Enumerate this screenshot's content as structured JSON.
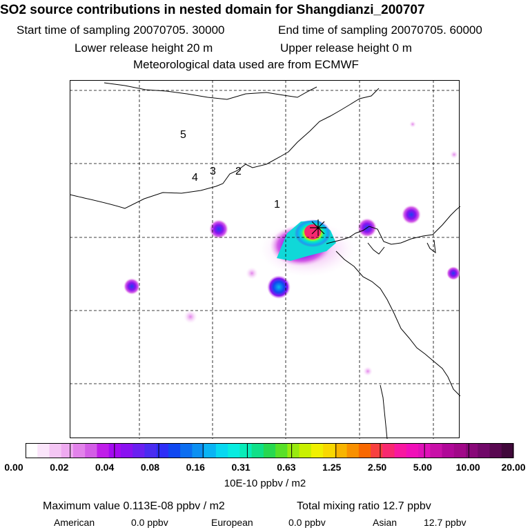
{
  "title": "SO2 source contributions in nested domain for Shangdianzi_200707",
  "sampling": {
    "start": "Start time of sampling 20070705. 30000",
    "end": "End time of sampling 20070705. 60000"
  },
  "release": {
    "lower": "Lower release height   20 m",
    "upper": "Upper release height    0 m"
  },
  "met_source": "Meteorological data used are from ECMWF",
  "map": {
    "region_labels": [
      "1",
      "2",
      "3",
      "4",
      "5"
    ],
    "receptor_marker": "star-cross"
  },
  "colorbar": {
    "tick_labels": [
      "0.00",
      "0.02",
      "0.04",
      "0.08",
      "0.16",
      "0.31",
      "0.63",
      "1.25",
      "2.50",
      "5.00",
      "10.00",
      "20.00"
    ],
    "units": "10E-10 ppbv / m2",
    "colors": [
      "#ffffff",
      "#fbe5fb",
      "#f4c6f4",
      "#eeaaf0",
      "#e282ea",
      "#d35de6",
      "#bf1ee8",
      "#a40af0",
      "#8a12f0",
      "#6a20f0",
      "#4a2cf0",
      "#2e2ef8",
      "#1048f0",
      "#0c6ef0",
      "#0c90f2",
      "#0ab4f4",
      "#08d8f0",
      "#08ece0",
      "#08ecb8",
      "#10e088",
      "#28d850",
      "#58e028",
      "#98ea10",
      "#c8f000",
      "#f0f000",
      "#f8d800",
      "#f8b400",
      "#f89000",
      "#f86800",
      "#f84040",
      "#f82870",
      "#f818a0",
      "#f010b8",
      "#e010b8",
      "#c810a8",
      "#b00898",
      "#a00888",
      "#880878",
      "#700868",
      "#580850",
      "#40083a"
    ]
  },
  "footer": {
    "maximum": "Maximum value  0.113E-08 ppbv / m2",
    "total": "Total mixing ratio      12.7 ppbv",
    "american_label": "American",
    "american_value": "0.0 ppbv",
    "european_label": "European",
    "european_value": "0.0 ppbv",
    "asian_label": "Asian",
    "asian_value": "12.7 ppbv"
  }
}
